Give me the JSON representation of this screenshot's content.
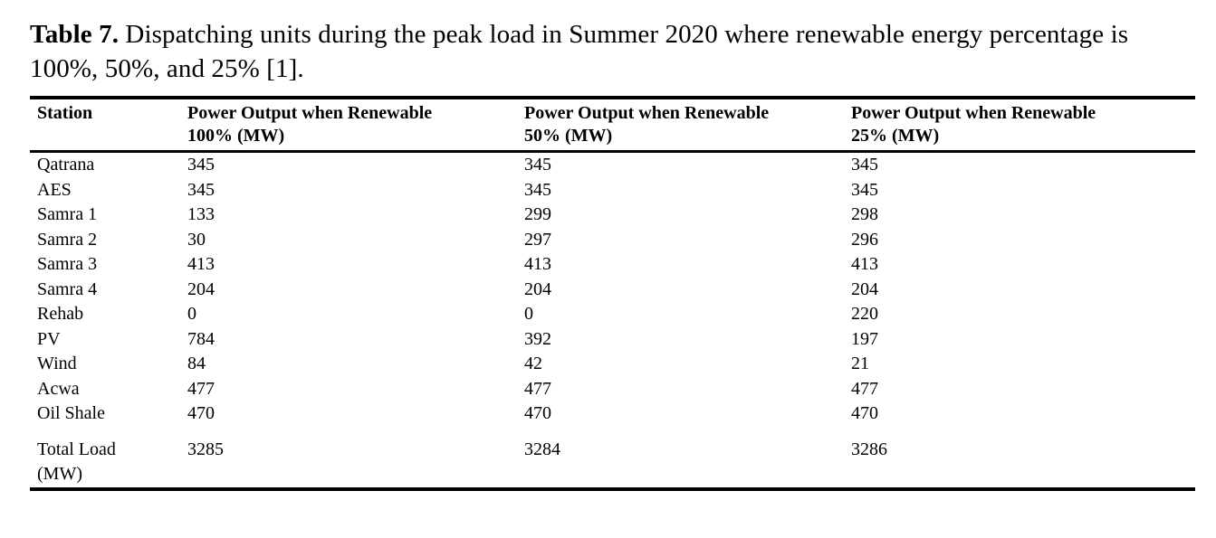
{
  "page": {
    "background": "#ffffff",
    "text_color": "#000000",
    "rule_color": "#000000"
  },
  "caption": {
    "label": "Table 7.",
    "text": " Dispatching units during the peak load in Summer 2020 where renewable energy percentage is 100%, 50%, and 25% [1]."
  },
  "table": {
    "headers": [
      {
        "line1": "Station",
        "line2": ""
      },
      {
        "line1": "Power Output when Renewable",
        "line2": "100% (MW)"
      },
      {
        "line1": "Power Output when Renewable",
        "line2": "50% (MW)"
      },
      {
        "line1": "Power Output when Renewable",
        "line2": "25% (MW)"
      }
    ],
    "rows": [
      {
        "station": "Qatrana",
        "p100": "345",
        "p50": "345",
        "p25": "345"
      },
      {
        "station": "AES",
        "p100": "345",
        "p50": "345",
        "p25": "345"
      },
      {
        "station": "Samra 1",
        "p100": "133",
        "p50": "299",
        "p25": "298"
      },
      {
        "station": "Samra 2",
        "p100": "30",
        "p50": "297",
        "p25": "296"
      },
      {
        "station": "Samra 3",
        "p100": "413",
        "p50": "413",
        "p25": "413"
      },
      {
        "station": "Samra 4",
        "p100": "204",
        "p50": "204",
        "p25": "204"
      },
      {
        "station": "Rehab",
        "p100": "0",
        "p50": "0",
        "p25": "220"
      },
      {
        "station": "PV",
        "p100": "784",
        "p50": "392",
        "p25": "197"
      },
      {
        "station": "Wind",
        "p100": "84",
        "p50": "42",
        "p25": "21"
      },
      {
        "station": "Acwa",
        "p100": "477",
        "p50": "477",
        "p25": "477"
      },
      {
        "station": "Oil Shale",
        "p100": "470",
        "p50": "470",
        "p25": "470"
      }
    ],
    "total": {
      "label_line1": "Total Load",
      "label_line2": "(MW)",
      "p100": "3285",
      "p50": "3284",
      "p25": "3286"
    }
  }
}
